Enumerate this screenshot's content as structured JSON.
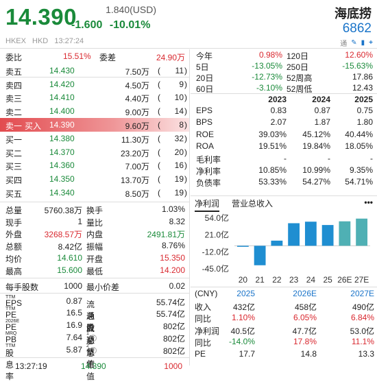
{
  "header": {
    "price": "14.390",
    "change_usd": "1.840(USD)",
    "change": "-1.600",
    "change_pct": "-10.01%",
    "name": "海底捞",
    "code": "6862",
    "exchange": "HKEX",
    "currency": "HKD",
    "time": "13:27:24",
    "icon_label": "通"
  },
  "ratio": {
    "label1": "委比",
    "value1": "15.51%",
    "label2": "委差",
    "value2": "24.90万"
  },
  "asks": [
    {
      "label": "卖五",
      "price": "14.430",
      "vol": "7.50万",
      "count": "11"
    },
    {
      "label": "卖四",
      "price": "14.420",
      "vol": "4.50万",
      "count": "9"
    },
    {
      "label": "卖三",
      "price": "14.410",
      "vol": "4.40万",
      "count": "10"
    },
    {
      "label": "卖二",
      "price": "14.400",
      "vol": "9.00万",
      "count": "14"
    },
    {
      "label": "卖一",
      "tag": "买入",
      "price": "14.390",
      "vol": "9.60万",
      "count": "8"
    }
  ],
  "bids": [
    {
      "label": "买一",
      "price": "14.380",
      "vol": "11.30万",
      "count": "32"
    },
    {
      "label": "买二",
      "price": "14.370",
      "vol": "23.20万",
      "count": "20"
    },
    {
      "label": "买三",
      "price": "14.360",
      "vol": "7.00万",
      "count": "16"
    },
    {
      "label": "买四",
      "price": "14.350",
      "vol": "13.70万",
      "count": "19"
    },
    {
      "label": "买五",
      "price": "14.340",
      "vol": "8.50万",
      "count": "19"
    }
  ],
  "stats": [
    {
      "l1": "总量",
      "v1": "5760.38万",
      "l2": "换手",
      "v2": "1.03%"
    },
    {
      "l1": "现手",
      "v1": "1",
      "l2": "量比",
      "v2": "8.32"
    },
    {
      "l1": "外盘",
      "v1": "3268.57万",
      "l2": "内盘",
      "v2": "2491.81万"
    },
    {
      "l1": "总额",
      "v1": "8.42亿",
      "l2": "振幅",
      "v2": "8.76%"
    },
    {
      "l1": "均价",
      "v1": "14.610",
      "l2": "开盘",
      "v2": "15.350"
    },
    {
      "l1": "最高",
      "v1": "15.600",
      "l2": "最低",
      "v2": "14.200"
    }
  ],
  "lot": {
    "l1": "每手股数",
    "v1": "1000",
    "l2": "最小价差",
    "v2": "0.02"
  },
  "valuation": [
    {
      "l1": "EPS",
      "s1": "TTM",
      "v1": "0.87",
      "l2": "流通盘",
      "v2": "55.74亿"
    },
    {
      "l1": "PE",
      "s1": "TTM",
      "v1": "16.5",
      "l2": "总股本",
      "v2": "55.74亿"
    },
    {
      "l1": "PE",
      "s1": "2026E",
      "v1": "16.9",
      "l2": "流通值",
      "v2": "802亿"
    },
    {
      "l1": "PB",
      "s1": "MRQ",
      "v1": "7.64",
      "l2": "总市值",
      "s2": "1",
      "v2": "802亿"
    },
    {
      "l1": "股息率",
      "s1": "TTM",
      "v1": "5.87",
      "l2": "总市值",
      "s2": "2",
      "v2": "802亿"
    }
  ],
  "last_trade": {
    "time": "13:27:19",
    "price": "14.390",
    "vol": "1000"
  },
  "perf": [
    {
      "l1": "今年",
      "v1": "0.98%",
      "l2": "120日",
      "v2": "12.60%"
    },
    {
      "l1": "5日",
      "v1": "-13.05%",
      "l2": "250日",
      "v2": "-15.63%"
    },
    {
      "l1": "20日",
      "v1": "-12.73%",
      "l2": "52周高",
      "v2": "17.86"
    },
    {
      "l1": "60日",
      "v1": "-3.10%",
      "l2": "52周低",
      "v2": "12.43"
    }
  ],
  "fin": {
    "years": [
      "2023",
      "2024",
      "2025"
    ],
    "rows": [
      {
        "label": "EPS",
        "vals": [
          "0.83",
          "0.87",
          "0.75"
        ]
      },
      {
        "label": "BPS",
        "vals": [
          "2.07",
          "1.87",
          "1.80"
        ]
      },
      {
        "label": "ROE",
        "vals": [
          "39.03%",
          "45.12%",
          "40.44%"
        ]
      },
      {
        "label": "ROA",
        "vals": [
          "19.51%",
          "19.84%",
          "18.05%"
        ]
      },
      {
        "label": "毛利率",
        "vals": [
          "-",
          "-",
          "-"
        ]
      },
      {
        "label": "净利率",
        "vals": [
          "10.85%",
          "10.99%",
          "9.35%"
        ]
      },
      {
        "label": "负债率",
        "vals": [
          "53.33%",
          "54.27%",
          "54.71%"
        ]
      }
    ]
  },
  "tabs": {
    "t1": "净利润",
    "t2": "营业总收入",
    "more": "•••"
  },
  "chart_data": {
    "type": "bar",
    "categories": [
      "20",
      "21",
      "22",
      "23",
      "24",
      "25",
      "26E",
      "27E"
    ],
    "values": [
      -2.0,
      -38.0,
      10.0,
      44.0,
      47.0,
      40.5,
      47.7,
      53.0
    ],
    "yticks": [
      "54.0亿",
      "21.0亿",
      "-12.0亿",
      "-45.0亿"
    ],
    "ylim": [
      -45,
      54
    ],
    "colors": {
      "actual": "#1f8ed1",
      "estimate": "#4fb0b4"
    }
  },
  "forecast": {
    "unit": "(CNY)",
    "years": [
      "2025",
      "2026E",
      "2027E"
    ],
    "rows": [
      {
        "label": "收入",
        "vals": [
          "432亿",
          "458亿",
          "490亿"
        ]
      },
      {
        "label": "同比",
        "vals": [
          "1.10%",
          "6.05%",
          "6.84%"
        ]
      },
      {
        "label": "净利润",
        "vals": [
          "40.5亿",
          "47.7亿",
          "53.0亿"
        ]
      },
      {
        "label": "同比",
        "vals": [
          "-14.0%",
          "17.8%",
          "11.1%"
        ]
      },
      {
        "label": "PE",
        "vals": [
          "17.7",
          "14.8",
          "13.3"
        ]
      }
    ]
  }
}
